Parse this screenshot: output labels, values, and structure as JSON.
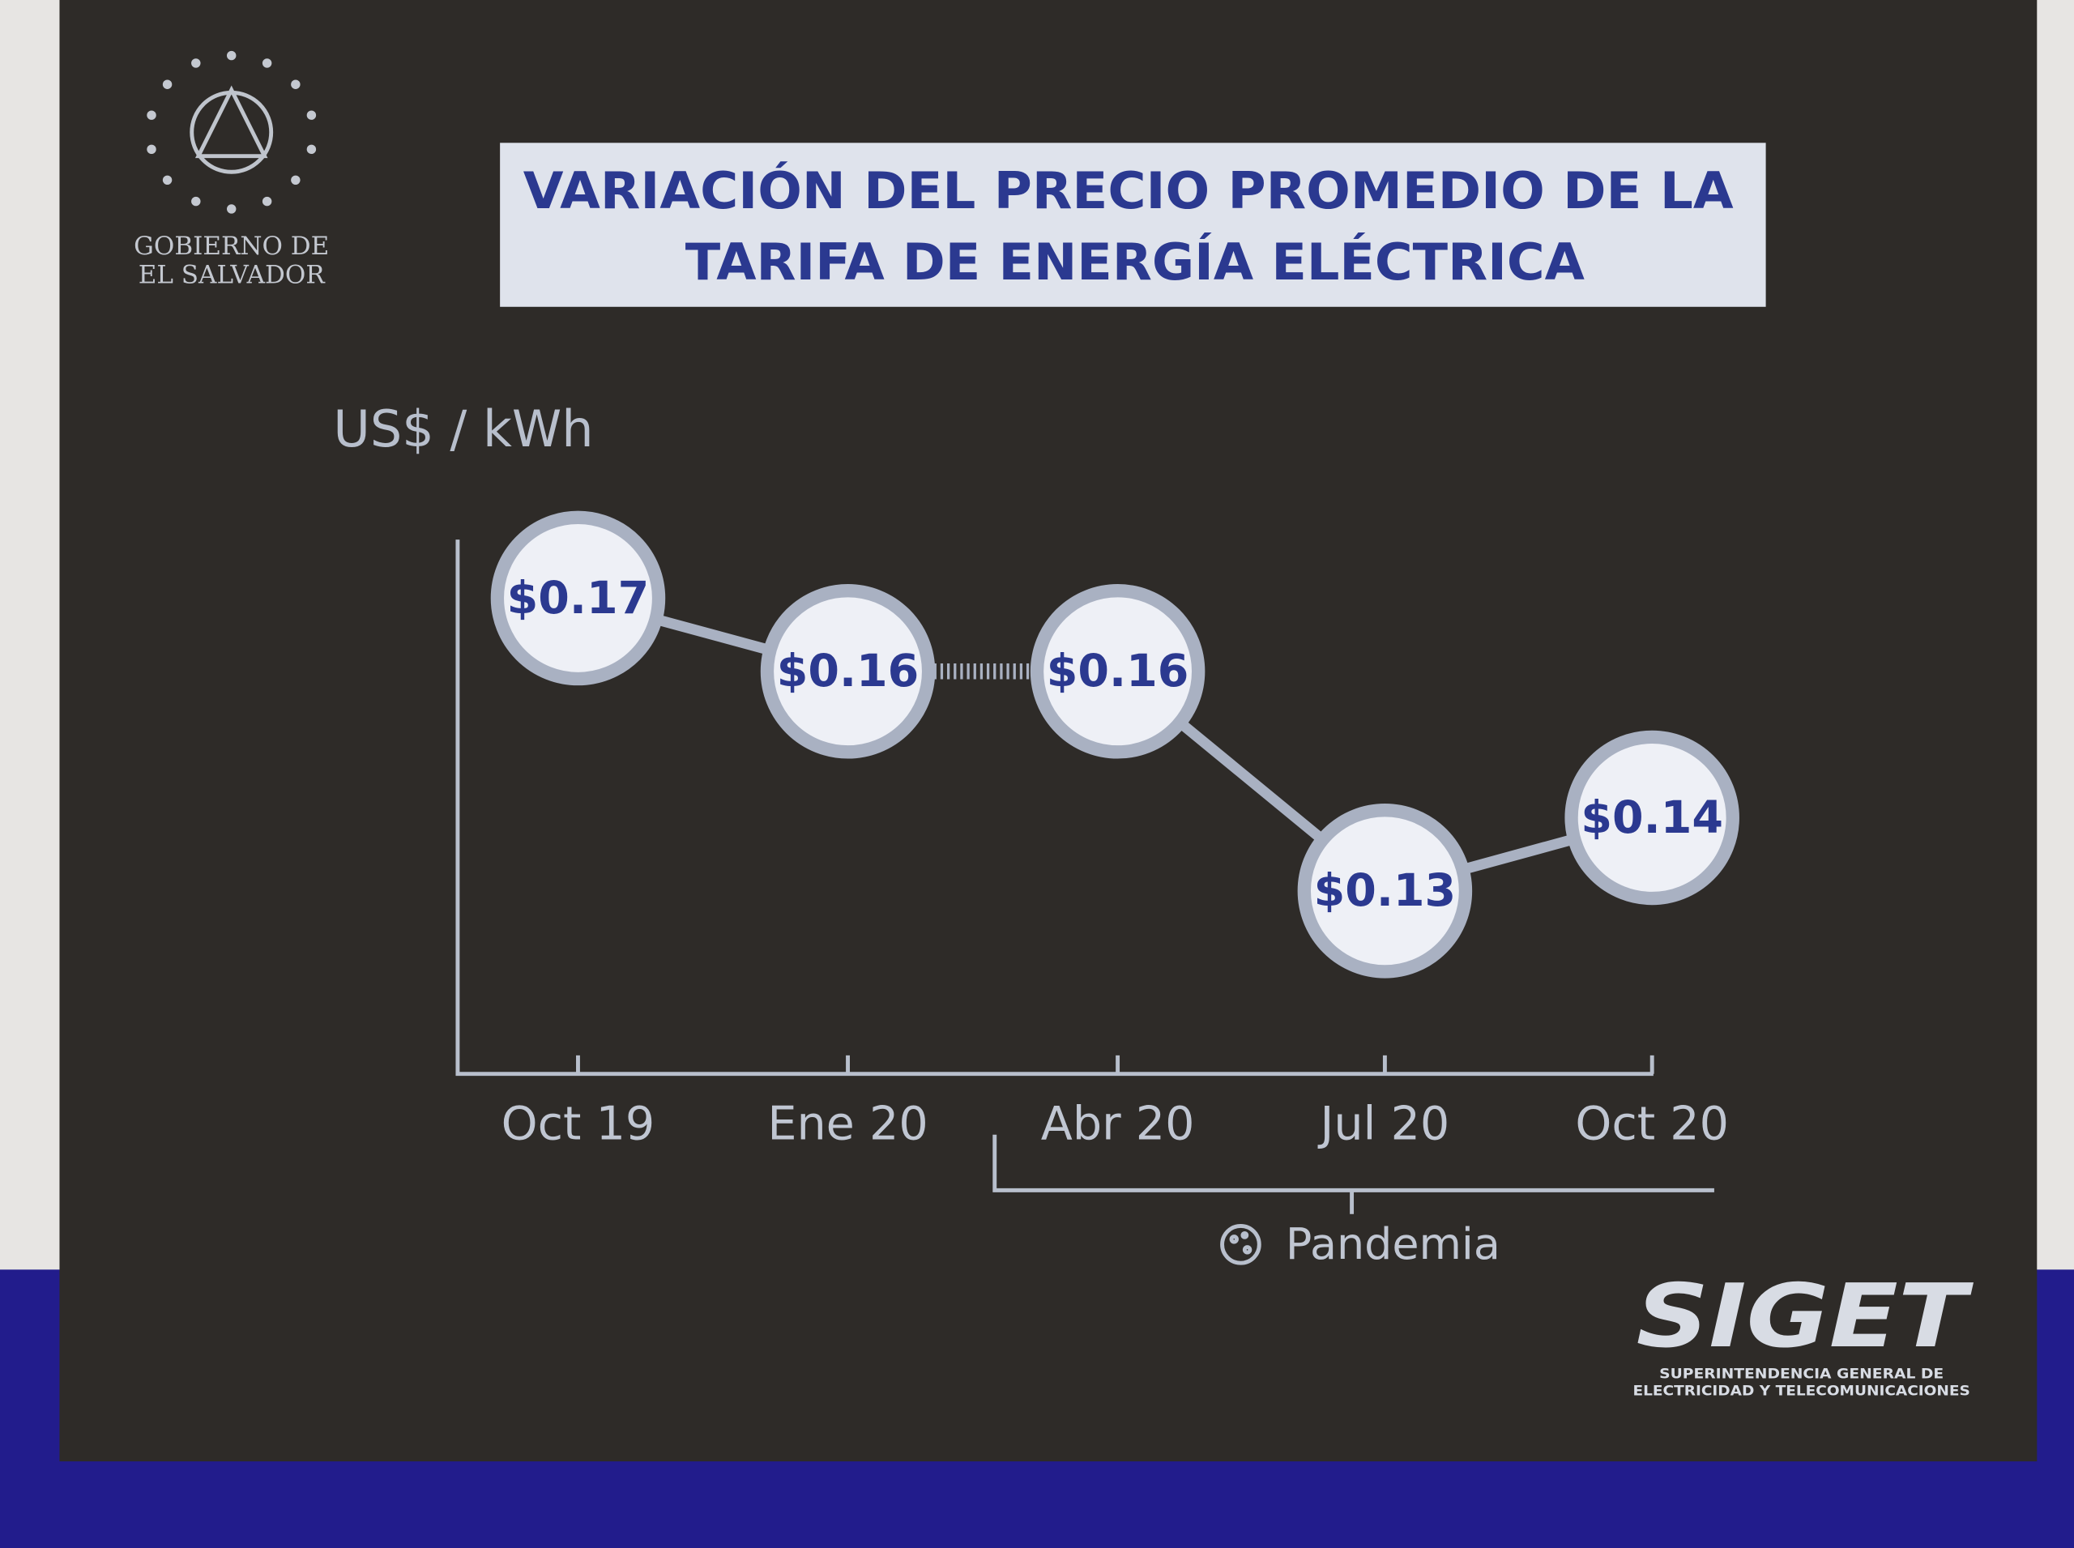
{
  "chart_data": {
    "type": "line",
    "title": [
      "VARIACIÓN DEL PRECIO PROMEDIO DE LA",
      "TARIFA DE ENERGÍA ELÉCTRICA"
    ],
    "y_label": "US$ / kWh",
    "categories": [
      "Oct 19",
      "Ene 20",
      "Abr 20",
      "Jul 20",
      "Oct 20"
    ],
    "values": [
      0.17,
      0.16,
      0.16,
      0.13,
      0.14
    ],
    "value_labels": [
      "$0.17",
      "$0.16",
      "$0.16",
      "$0.13",
      "$0.14"
    ],
    "segment_styles": [
      "solid",
      "dotted",
      "solid",
      "solid"
    ],
    "ylim": [
      0.105,
      0.178
    ],
    "color": "#a9b1c2",
    "annotation": "Pandemia",
    "logos": {
      "government": [
        "GOBIERNO DE",
        "EL SALVADOR"
      ],
      "siget": "SIGET",
      "siget_subtitle": [
        "SUPERINTENDENCIA GENERAL DE",
        "ELECTRICIDAD Y TELECOMUNICACIONES"
      ]
    }
  }
}
